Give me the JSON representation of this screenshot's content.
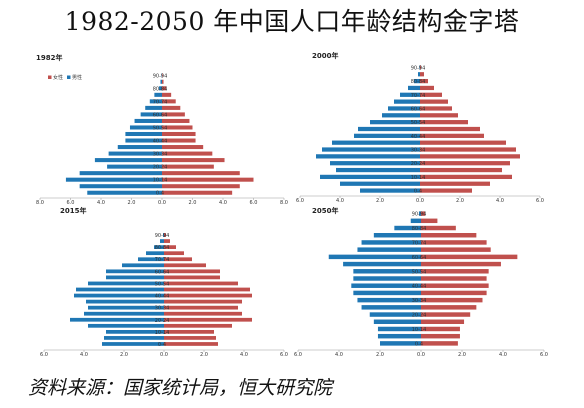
{
  "page_title": "1982-2050 年中国人口年龄结构金字塔",
  "source": "资料来源：国家统计局，恒大研究院",
  "colors": {
    "female": "#c0504d",
    "male": "#1f77b4",
    "axis": "#999999"
  },
  "age_groups": [
    "0-4",
    "5-9",
    "10-14",
    "15-19",
    "20-24",
    "25-29",
    "30-34",
    "35-39",
    "40-44",
    "45-49",
    "50-54",
    "55-59",
    "60-64",
    "65-69",
    "70-74",
    "75-79",
    "80-84",
    "85-89",
    "90-94"
  ],
  "chart_data": [
    {
      "type": "bar",
      "title": "1982年",
      "legend": [
        "女性",
        "男性"
      ],
      "xlim": [
        -8,
        8
      ],
      "xticks": [
        -8,
        -6,
        -4,
        -2,
        0,
        2,
        4,
        6,
        8
      ],
      "xticklabels": [
        "8.0",
        "6.0",
        "4.0",
        "2.0",
        "0.0",
        "2.0",
        "4.0",
        "6.0",
        "8.0"
      ],
      "yticklabels": [
        "0-4",
        "10-14",
        "20-24",
        "30-34",
        "40-44",
        "50-54",
        "60-64",
        "70-74",
        "80-84",
        "90-94"
      ],
      "series": [
        {
          "name": "男性",
          "values": [
            4.9,
            5.4,
            6.3,
            5.4,
            3.6,
            4.4,
            3.5,
            2.9,
            2.4,
            2.4,
            2.1,
            1.8,
            1.4,
            1.1,
            0.8,
            0.5,
            0.2,
            0.1,
            0.03
          ]
        },
        {
          "name": "女性",
          "values": [
            4.6,
            5.1,
            6.0,
            5.1,
            3.4,
            4.1,
            3.3,
            2.7,
            2.2,
            2.2,
            2.0,
            1.8,
            1.5,
            1.2,
            0.9,
            0.6,
            0.3,
            0.1,
            0.04
          ]
        }
      ]
    },
    {
      "type": "bar",
      "title": "2000年",
      "xlim": [
        -6,
        6
      ],
      "xticks": [
        -6,
        -4,
        -2,
        0,
        2,
        4,
        6
      ],
      "xticklabels": [
        "6.0",
        "4.0",
        "2.0",
        "0.0",
        "2.0",
        "4.0",
        "6.0"
      ],
      "yticklabels": [
        "0-4",
        "10-14",
        "20-24",
        "30-34",
        "40-44",
        "50-54",
        "60-64",
        "70-74",
        "80-84",
        "90-94"
      ],
      "series": [
        {
          "name": "男性",
          "values": [
            3.0,
            4.0,
            5.0,
            4.2,
            4.5,
            5.2,
            4.9,
            4.4,
            3.3,
            3.1,
            2.5,
            1.9,
            1.6,
            1.3,
            1.0,
            0.6,
            0.3,
            0.1,
            0.03
          ]
        },
        {
          "name": "女性",
          "values": [
            2.6,
            3.5,
            4.6,
            4.1,
            4.5,
            5.0,
            4.8,
            4.3,
            3.2,
            3.0,
            2.4,
            1.9,
            1.6,
            1.4,
            1.1,
            0.7,
            0.4,
            0.2,
            0.05
          ]
        }
      ]
    },
    {
      "type": "bar",
      "title": "2015年",
      "xlim": [
        -6,
        6
      ],
      "xticks": [
        -6,
        -4,
        -2,
        0,
        2,
        4,
        6
      ],
      "xticklabels": [
        "6.0",
        "4.0",
        "2.0",
        "0.0",
        "2.0",
        "4.0",
        "6.0"
      ],
      "yticklabels": [
        "0-4",
        "10-14",
        "20-24",
        "30-34",
        "40-44",
        "50-54",
        "60-64",
        "70-74",
        "80-84",
        "90-94"
      ],
      "series": [
        {
          "name": "男性",
          "values": [
            3.1,
            3.0,
            2.9,
            3.8,
            4.7,
            4.0,
            3.8,
            3.9,
            4.5,
            4.4,
            3.8,
            2.9,
            2.9,
            2.1,
            1.3,
            0.9,
            0.5,
            0.2,
            0.05
          ]
        },
        {
          "name": "女性",
          "values": [
            2.7,
            2.6,
            2.5,
            3.4,
            4.4,
            3.9,
            3.7,
            3.9,
            4.4,
            4.3,
            3.7,
            2.8,
            2.8,
            2.1,
            1.4,
            1.0,
            0.6,
            0.3,
            0.1
          ]
        }
      ]
    },
    {
      "type": "bar",
      "title": "2050年",
      "xlim": [
        -6,
        6
      ],
      "xticks": [
        -6,
        -4,
        -2,
        0,
        2,
        4,
        6
      ],
      "xticklabels": [
        "6.0",
        "4.0",
        "2.0",
        "0.0",
        "2.0",
        "4.0",
        "6.0"
      ],
      "yticklabels": [
        "0-4",
        "10-14",
        "20-24",
        "30-34",
        "40-44",
        "50-54",
        "60-64",
        "70-74",
        "80-84",
        "90-94"
      ],
      "series": [
        {
          "name": "男性",
          "values": [
            2.0,
            2.1,
            2.1,
            2.3,
            2.5,
            2.9,
            3.1,
            3.3,
            3.4,
            3.3,
            3.3,
            3.8,
            4.5,
            3.1,
            2.9,
            2.3,
            1.3,
            0.5,
            0.1
          ]
        },
        {
          "name": "女性",
          "values": [
            1.8,
            1.9,
            1.9,
            2.1,
            2.4,
            2.7,
            3.0,
            3.2,
            3.3,
            3.2,
            3.3,
            3.9,
            4.7,
            3.4,
            3.2,
            2.7,
            1.7,
            0.8,
            0.2
          ]
        }
      ]
    }
  ]
}
